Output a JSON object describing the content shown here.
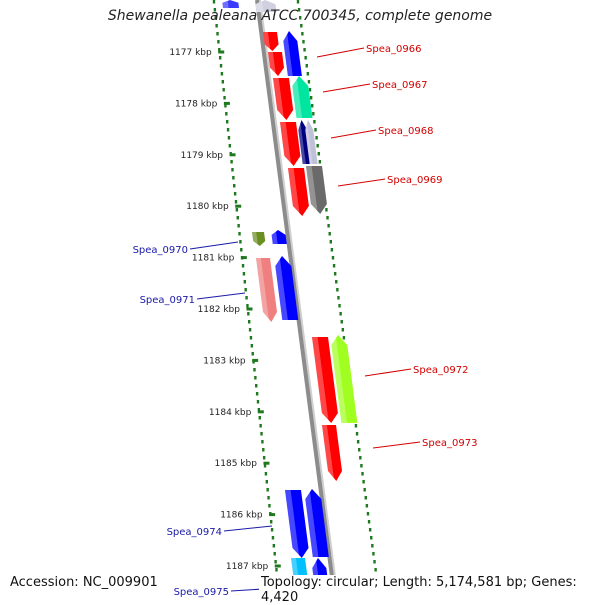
{
  "title": "Shewanella pealeana ATCC 700345, complete genome",
  "footer": {
    "accession": "Accession: NC_009901",
    "topology": "Topology: circular; Length: 5,174,581 bp; Genes: 4,420"
  },
  "scale_marks": [
    {
      "label": "1177 kbp",
      "kbp": 1177
    },
    {
      "label": "1178 kbp",
      "kbp": 1178
    },
    {
      "label": "1179 kbp",
      "kbp": 1179
    },
    {
      "label": "1180 kbp",
      "kbp": 1180
    },
    {
      "label": "1181 kbp",
      "kbp": 1181
    },
    {
      "label": "1182 kbp",
      "kbp": 1182
    },
    {
      "label": "1183 kbp",
      "kbp": 1183
    },
    {
      "label": "1184 kbp",
      "kbp": 1184
    },
    {
      "label": "1185 kbp",
      "kbp": 1185
    },
    {
      "label": "1186 kbp",
      "kbp": 1186
    },
    {
      "label": "1187 kbp",
      "kbp": 1187
    }
  ],
  "gene_labels": [
    {
      "label": "Spea_0966",
      "side": "right",
      "color": "#d40000"
    },
    {
      "label": "Spea_0967",
      "side": "right",
      "color": "#d40000"
    },
    {
      "label": "Spea_0968",
      "side": "right",
      "color": "#d40000"
    },
    {
      "label": "Spea_0969",
      "side": "right",
      "color": "#d40000"
    },
    {
      "label": "Spea_0970",
      "side": "left",
      "color": "#1a1aa6"
    },
    {
      "label": "Spea_0971",
      "side": "left",
      "color": "#1a1aa6"
    },
    {
      "label": "Spea_0972",
      "side": "right",
      "color": "#d40000"
    },
    {
      "label": "Spea_0973",
      "side": "right",
      "color": "#d40000"
    },
    {
      "label": "Spea_0974",
      "side": "left",
      "color": "#1a1aa6"
    },
    {
      "label": "Spea_0975",
      "side": "left",
      "color": "#1a1aa6"
    }
  ],
  "colors": {
    "reverse_strand_gene": "#ff0000",
    "forward_strand_gene": "#0000ff",
    "backbone": "#8c8c8c",
    "tick_dots": "#1f7a1f"
  }
}
